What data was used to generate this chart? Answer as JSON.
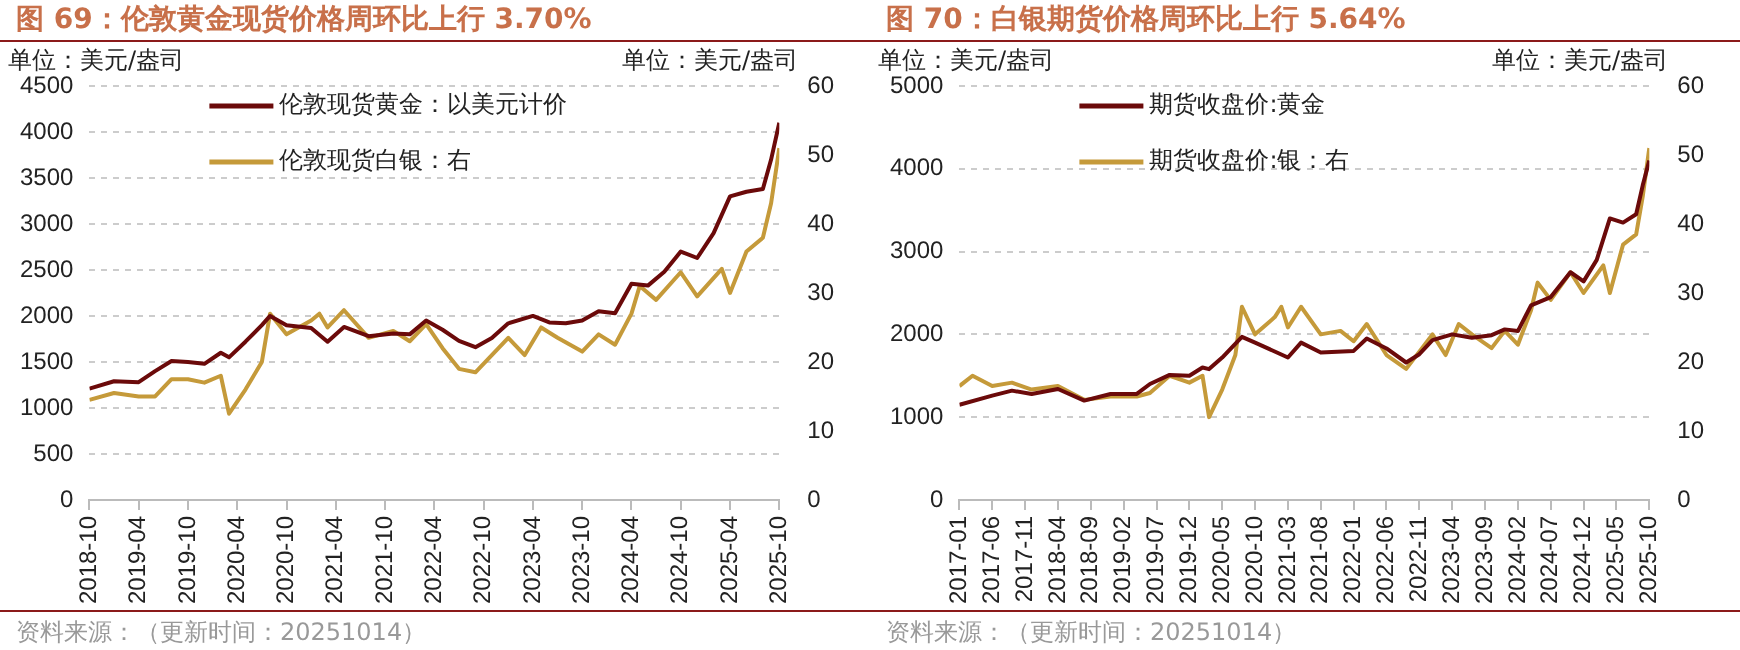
{
  "chart_data": [
    {
      "type": "line",
      "title": "图 69：伦敦黄金现货价格周环比上行 3.70%",
      "ylabel": "单位：美元/盎司",
      "y2label": "单位：美元/盎司",
      "annotations": [
        "资料来源：（更新时间：20251014）"
      ],
      "series": [
        {
          "name": "伦敦现货黄金：以美元计价",
          "color": "#6b0a0a",
          "x": [
            "2018-10-01",
            "2019-01",
            "2019-04",
            "2019-06",
            "2019-08",
            "2019-10",
            "2019-12",
            "2020-02",
            "2020-03",
            "2020-05",
            "2020-07",
            "2020-08",
            "2020-10",
            "2021-01",
            "2021-03",
            "2021-05",
            "2021-08",
            "2021-11",
            "2022-01",
            "2022-03",
            "2022-05",
            "2022-07",
            "2022-09",
            "2022-11",
            "2023-01",
            "2023-04",
            "2023-06",
            "2023-08",
            "2023-10",
            "2023-12",
            "2024-02",
            "2024-04",
            "2024-06",
            "2024-08",
            "2024-10",
            "2024-12",
            "2025-02",
            "2025-04",
            "2025-06",
            "2025-08",
            "2025-09",
            "2025-10"
          ],
          "values": [
            1210,
            1290,
            1280,
            1400,
            1510,
            1500,
            1480,
            1600,
            1550,
            1720,
            1900,
            2000,
            1900,
            1870,
            1720,
            1880,
            1780,
            1810,
            1800,
            1950,
            1850,
            1730,
            1660,
            1760,
            1920,
            2000,
            1930,
            1920,
            1950,
            2050,
            2030,
            2350,
            2330,
            2480,
            2700,
            2630,
            2900,
            3300,
            3350,
            3380,
            3700,
            4100
          ]
        },
        {
          "name": "伦敦现货白银：右",
          "color": "#c59a3a",
          "axis": "y2",
          "x": [
            "2018-10-01",
            "2019-01",
            "2019-04",
            "2019-06",
            "2019-08",
            "2019-10",
            "2019-12",
            "2020-02",
            "2020-03",
            "2020-05",
            "2020-07",
            "2020-08",
            "2020-10",
            "2021-01",
            "2021-02",
            "2021-03",
            "2021-05",
            "2021-08",
            "2021-11",
            "2022-01",
            "2022-03",
            "2022-05",
            "2022-07",
            "2022-09",
            "2022-11",
            "2023-01",
            "2023-03",
            "2023-05",
            "2023-07",
            "2023-10",
            "2023-12",
            "2024-02",
            "2024-04",
            "2024-05",
            "2024-07",
            "2024-10",
            "2024-12",
            "2025-03",
            "2025-04",
            "2025-06",
            "2025-08",
            "2025-09",
            "2025-10"
          ],
          "values": [
            14.5,
            15.5,
            15,
            15,
            17.5,
            17.5,
            17,
            18,
            12.5,
            16,
            20,
            27,
            24,
            26,
            27,
            25,
            27.5,
            23.5,
            24.5,
            23,
            25.5,
            22,
            19,
            18.5,
            21,
            23.5,
            21,
            25,
            23.5,
            21.5,
            24,
            22.5,
            27,
            31,
            29,
            33,
            29.5,
            33.5,
            30,
            36,
            38,
            43,
            51
          ]
        }
      ],
      "xlim": [
        "2018-10",
        "2025-10"
      ],
      "xticks": [
        "2018-10",
        "2019-04",
        "2019-10",
        "2020-04",
        "2020-10",
        "2021-04",
        "2021-10",
        "2022-04",
        "2022-10",
        "2023-04",
        "2023-10",
        "2024-04",
        "2024-10",
        "2025-04",
        "2025-10"
      ],
      "ylim": [
        0,
        4500
      ],
      "yticks": [
        0,
        500,
        1000,
        1500,
        2000,
        2500,
        3000,
        3500,
        4000,
        4500
      ],
      "y2lim": [
        0,
        60
      ],
      "y2ticks": [
        0,
        10,
        20,
        30,
        40,
        50,
        60
      ],
      "grid": "y",
      "legend": "top left"
    },
    {
      "type": "line",
      "title": "图 70：白银期货价格周环比上行 5.64%",
      "ylabel": "单位：美元/盎司",
      "y2label": "单位：美元/盎司",
      "annotations": [
        "资料来源：（更新时间：20251014）"
      ],
      "series": [
        {
          "name": "期货收盘价:黄金",
          "color": "#6b0a0a",
          "x": [
            "2017-01-01",
            "2017-06",
            "2017-09",
            "2017-12",
            "2018-04",
            "2018-08",
            "2018-12",
            "2019-04",
            "2019-06",
            "2019-09",
            "2019-12",
            "2020-02",
            "2020-03",
            "2020-05",
            "2020-08",
            "2020-10",
            "2021-03",
            "2021-05",
            "2021-08",
            "2022-01",
            "2022-03",
            "2022-06",
            "2022-09",
            "2022-11",
            "2023-01",
            "2023-04",
            "2023-07",
            "2023-10",
            "2023-12",
            "2024-02",
            "2024-04",
            "2024-07",
            "2024-10",
            "2024-12",
            "2025-02",
            "2025-04",
            "2025-06",
            "2025-08",
            "2025-09",
            "2025-10"
          ],
          "values": [
            1150,
            1260,
            1320,
            1280,
            1340,
            1200,
            1280,
            1280,
            1400,
            1510,
            1500,
            1600,
            1580,
            1720,
            1970,
            1900,
            1720,
            1900,
            1780,
            1800,
            1950,
            1830,
            1660,
            1760,
            1930,
            2000,
            1960,
            1990,
            2060,
            2040,
            2350,
            2450,
            2750,
            2640,
            2900,
            3400,
            3350,
            3450,
            3800,
            4100
          ]
        },
        {
          "name": "期货收盘价:银：右",
          "color": "#c59a3a",
          "axis": "y2",
          "x": [
            "2017-01-01",
            "2017-03",
            "2017-06",
            "2017-09",
            "2017-12",
            "2018-04",
            "2018-08",
            "2018-12",
            "2019-04",
            "2019-06",
            "2019-09",
            "2019-12",
            "2020-02",
            "2020-03",
            "2020-05",
            "2020-07",
            "2020-08",
            "2020-10",
            "2021-01",
            "2021-02",
            "2021-03",
            "2021-05",
            "2021-08",
            "2021-11",
            "2022-01",
            "2022-03",
            "2022-06",
            "2022-09",
            "2022-11",
            "2023-01",
            "2023-03",
            "2023-05",
            "2023-07",
            "2023-10",
            "2023-12",
            "2024-02",
            "2024-04",
            "2024-05",
            "2024-07",
            "2024-10",
            "2024-12",
            "2025-03",
            "2025-04",
            "2025-06",
            "2025-08",
            "2025-09",
            "2025-10"
          ],
          "values": [
            16.5,
            18,
            16.5,
            17,
            16,
            16.5,
            14.5,
            15,
            15,
            15.5,
            18,
            17,
            18,
            12,
            16,
            21,
            28,
            24,
            26.5,
            28,
            25,
            28,
            24,
            24.5,
            23,
            25.5,
            21,
            19,
            21.5,
            24,
            21,
            25.5,
            24,
            22,
            24.5,
            22.5,
            27.5,
            31.5,
            29,
            33,
            30,
            34,
            30,
            37,
            38.5,
            44,
            51
          ]
        }
      ],
      "xlim": [
        "2017-01",
        "2025-10"
      ],
      "xticks": [
        "2017-01",
        "2017-06",
        "2017-11",
        "2018-04",
        "2018-09",
        "2019-02",
        "2019-07",
        "2019-12",
        "2020-05",
        "2020-10",
        "2021-03",
        "2021-08",
        "2022-01",
        "2022-06",
        "2022-11",
        "2023-04",
        "2023-09",
        "2024-02",
        "2024-07",
        "2024-12",
        "2025-05",
        "2025-10"
      ],
      "ylim": [
        0,
        5000
      ],
      "yticks": [
        0,
        1000,
        2000,
        3000,
        4000,
        5000
      ],
      "y2lim": [
        0,
        60
      ],
      "y2ticks": [
        0,
        10,
        20,
        30,
        40,
        50,
        60
      ],
      "grid": "y",
      "legend": "top left"
    }
  ]
}
